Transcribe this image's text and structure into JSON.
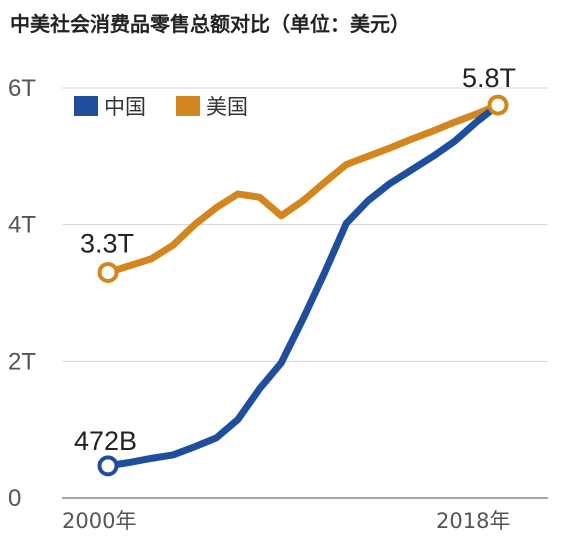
{
  "chart_data": {
    "type": "line",
    "title": "中美社会消费品零售总额对比（单位：美元）",
    "x": [
      2000,
      2001,
      2002,
      2003,
      2004,
      2005,
      2006,
      2007,
      2008,
      2009,
      2010,
      2011,
      2012,
      2013,
      2014,
      2015,
      2016,
      2017,
      2018
    ],
    "x_tick_labels": [
      "2000年",
      "2018年"
    ],
    "y_tick_labels": [
      "0",
      "2T",
      "4T",
      "6T"
    ],
    "ylim": [
      0,
      6
    ],
    "y_unit": "T",
    "series": [
      {
        "name": "中国",
        "color": "#1f4e9c",
        "values": [
          0.47,
          0.52,
          0.58,
          0.63,
          0.75,
          0.88,
          1.15,
          1.6,
          1.98,
          2.62,
          3.3,
          4.02,
          4.35,
          4.6,
          4.8,
          5.0,
          5.22,
          5.5,
          5.75
        ]
      },
      {
        "name": "美国",
        "color": "#d4861e",
        "values": [
          3.3,
          3.4,
          3.5,
          3.7,
          4.0,
          4.25,
          4.45,
          4.4,
          4.13,
          4.35,
          4.62,
          4.88,
          5.0,
          5.12,
          5.25,
          5.37,
          5.5,
          5.62,
          5.75
        ]
      }
    ],
    "annotations": [
      {
        "label": "472B",
        "series": "中国",
        "x": 2000
      },
      {
        "label": "3.3T",
        "series": "美国",
        "x": 2000
      },
      {
        "label": "5.8T",
        "series": "美国",
        "x": 2018
      }
    ],
    "legend": {
      "placement": "top-left"
    },
    "grid": true
  }
}
